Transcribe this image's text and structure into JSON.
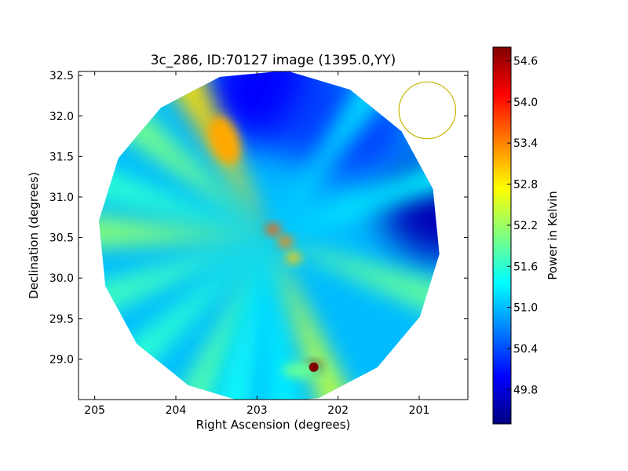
{
  "chart_data": {
    "type": "heatmap",
    "title": "3c_286, ID:70127 image (1395.0,YY)",
    "xlabel": "Right Ascension (degrees)",
    "ylabel": "Declination (degrees)",
    "xlim": [
      205.2,
      200.4
    ],
    "ylim": [
      28.5,
      32.55
    ],
    "x_ticks": [
      205,
      204,
      203,
      202,
      201
    ],
    "y_ticks": [
      29.0,
      29.5,
      30.0,
      30.5,
      31.0,
      31.5,
      32.0,
      32.5
    ],
    "x_tick_labels": [
      "205",
      "204",
      "203",
      "202",
      "201"
    ],
    "y_tick_labels": [
      "29.0",
      "29.5",
      "30.0",
      "30.5",
      "31.0",
      "31.5",
      "32.0",
      "32.5"
    ],
    "colormap": "jet",
    "colorbar": {
      "label": "Power in Kelvin",
      "range": [
        49.3,
        54.8
      ],
      "ticks": [
        49.8,
        50.4,
        51.0,
        51.6,
        52.2,
        52.8,
        53.4,
        54.0,
        54.6
      ],
      "tick_labels": [
        "49.8",
        "50.4",
        "51.0",
        "51.6",
        "52.2",
        "52.8",
        "53.4",
        "54.0",
        "54.6"
      ]
    },
    "field_of_view": {
      "center_ra": 202.85,
      "center_dec": 30.5,
      "radius_deg": 2.07
    },
    "background_level": 51.0,
    "rays": [
      {
        "angle_deg": 118,
        "value": 52.9
      },
      {
        "angle_deg": 140,
        "value": 52.0
      },
      {
        "angle_deg": 162,
        "value": 51.6
      },
      {
        "angle_deg": 178,
        "value": 52.1
      },
      {
        "angle_deg": 200,
        "value": 51.7
      },
      {
        "angle_deg": 222,
        "value": 51.6
      },
      {
        "angle_deg": 245,
        "value": 51.8
      },
      {
        "angle_deg": 258,
        "value": 51.4
      },
      {
        "angle_deg": 275,
        "value": 51.3
      },
      {
        "angle_deg": 292,
        "value": 52.4
      },
      {
        "angle_deg": 340,
        "value": 51.9
      },
      {
        "angle_deg": 20,
        "value": 51.3
      },
      {
        "angle_deg": 55,
        "value": 51.2
      }
    ],
    "low_regions": [
      {
        "ra": 200.7,
        "dec": 30.9,
        "value": 49.6
      },
      {
        "ra": 202.9,
        "dec": 32.3,
        "value": 50.0
      },
      {
        "ra": 201.9,
        "dec": 31.9,
        "value": 50.3
      }
    ],
    "sources": [
      {
        "ra": 202.3,
        "dec": 28.9,
        "value": 54.8
      },
      {
        "ra": 202.8,
        "dec": 30.6,
        "value": 53.6
      },
      {
        "ra": 202.65,
        "dec": 30.45,
        "value": 53.4
      },
      {
        "ra": 202.55,
        "dec": 30.25,
        "value": 53.0
      },
      {
        "ra": 203.4,
        "dec": 31.7,
        "value": 53.2
      }
    ],
    "beam_circle": {
      "ra": 200.9,
      "dec": 32.07,
      "radius_deg": 0.35,
      "color": "#c8b400"
    }
  }
}
